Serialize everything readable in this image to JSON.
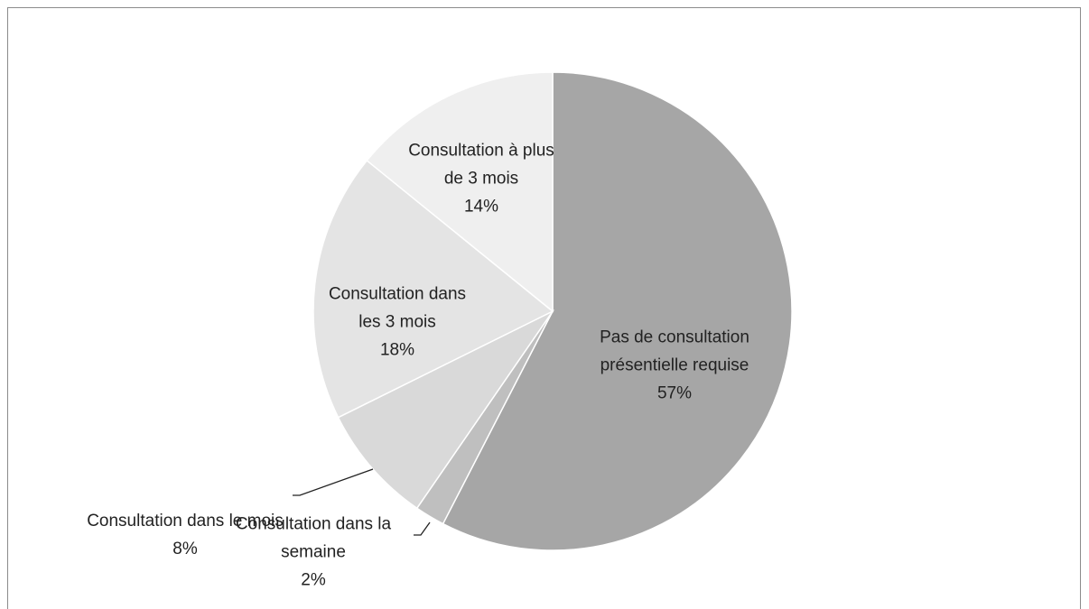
{
  "chart_data": {
    "type": "pie",
    "categories": [
      "Pas de consultation présentielle requise",
      "Consultation dans la semaine",
      "Consultation dans le mois",
      "Consultation dans les 3 mois",
      "Consultation à plus de 3 mois"
    ],
    "values": [
      57,
      2,
      8,
      18,
      14
    ],
    "value_labels": [
      "57%",
      "2%",
      "8%",
      "18%",
      "14%"
    ],
    "colors": [
      "#a6a6a6",
      "#bfbfbf",
      "#d9d9d9",
      "#e4e4e4",
      "#efefef"
    ]
  }
}
